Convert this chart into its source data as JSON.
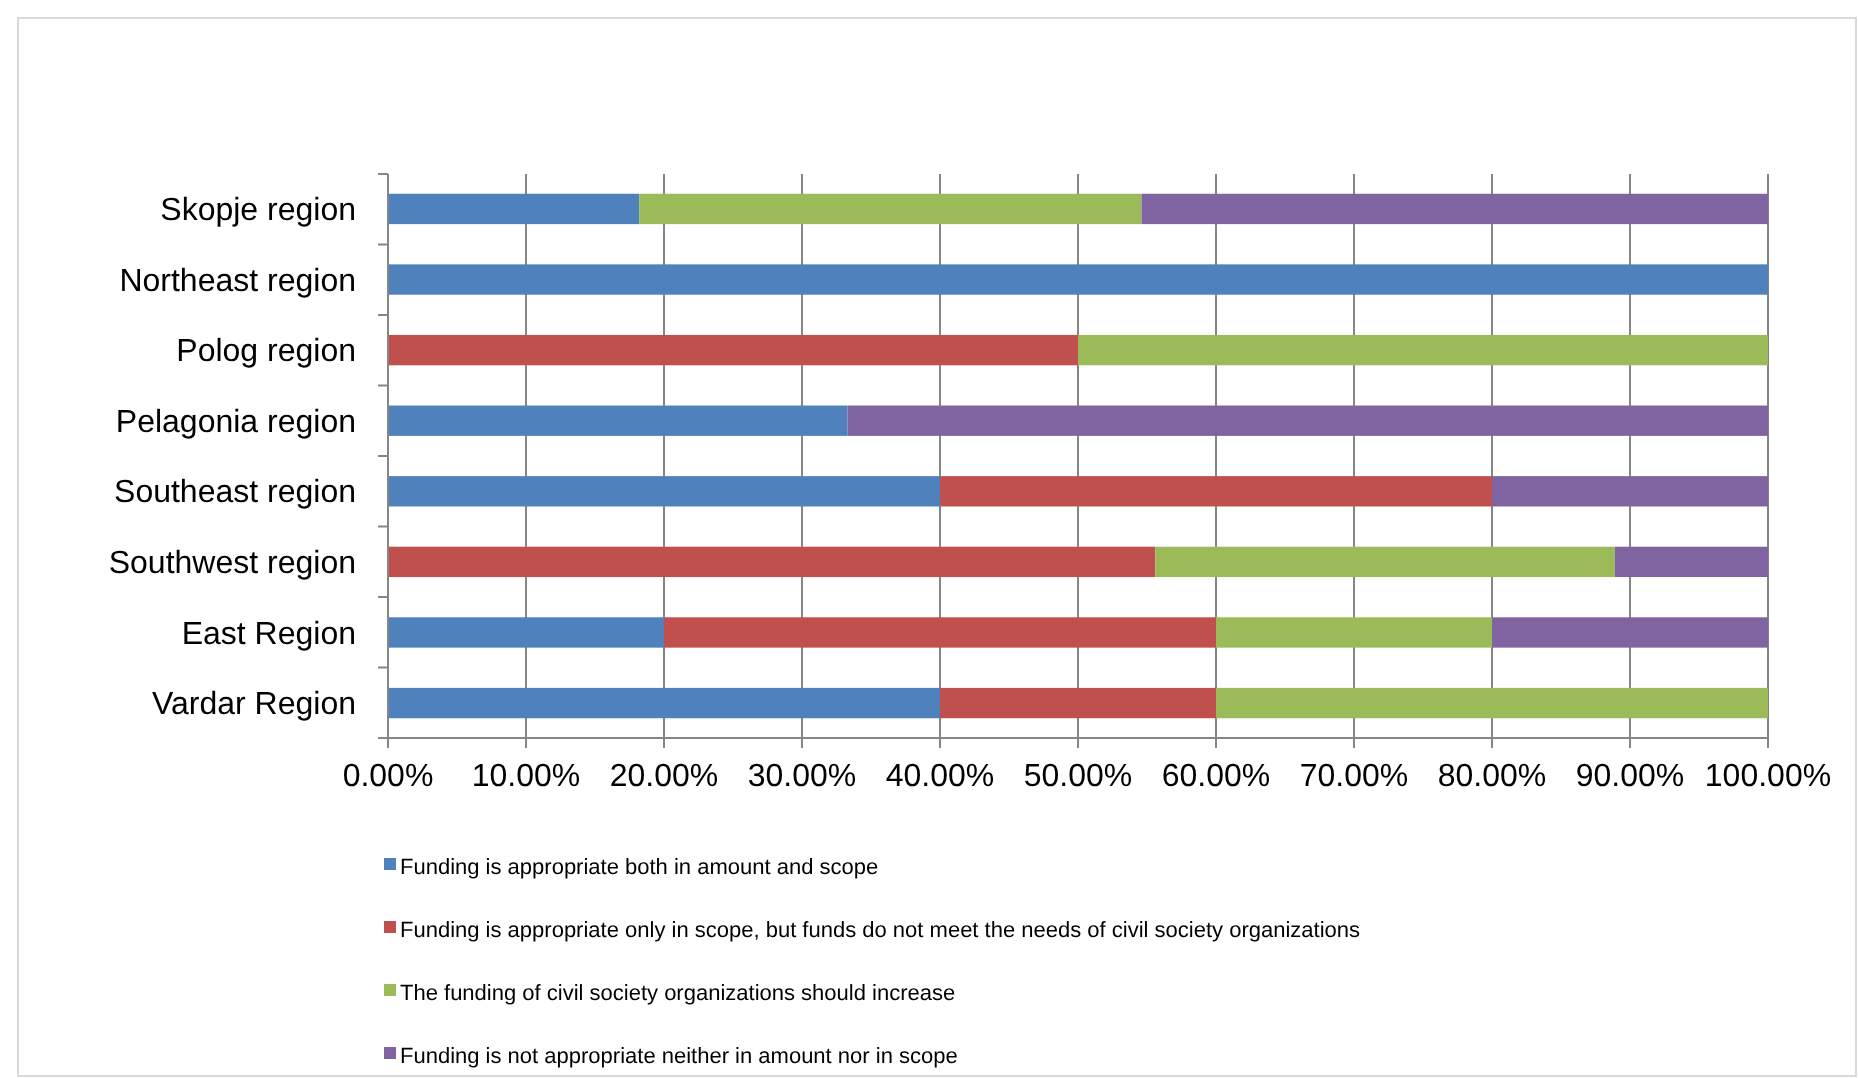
{
  "chart_data": {
    "type": "bar",
    "orientation": "horizontal",
    "stacked": true,
    "categories": [
      "Skopje region",
      "Northeast region",
      "Polog region",
      "Pelagonia region",
      "Southeast region",
      "Southwest region",
      "East Region",
      "Vardar Region"
    ],
    "series": [
      {
        "name": "Funding is appropriate both in amount and scope",
        "color": "#4f81bd",
        "values": [
          18.2,
          100,
          0,
          33.3,
          40,
          0,
          20,
          40
        ]
      },
      {
        "name": "Funding is appropriate only in scope, but funds do not meet the needs of civil society organizations",
        "color": "#c0504d",
        "values": [
          0,
          0,
          50,
          0,
          40,
          55.6,
          40,
          20
        ]
      },
      {
        "name": "The funding of civil society organizations should increase",
        "color": "#9bbb59",
        "values": [
          36.4,
          0,
          50,
          0,
          0,
          33.3,
          20,
          40
        ]
      },
      {
        "name": "Funding is not appropriate neither in amount nor in scope",
        "color": "#8064a2",
        "values": [
          45.4,
          0,
          0,
          66.7,
          20,
          11.1,
          20,
          0
        ]
      }
    ],
    "xlim": [
      0,
      100
    ],
    "xticks": [
      {
        "value": 0,
        "label": "0.00%"
      },
      {
        "value": 10,
        "label": "10.00%"
      },
      {
        "value": 20,
        "label": "20.00%"
      },
      {
        "value": 30,
        "label": "30.00%"
      },
      {
        "value": 40,
        "label": "40.00%"
      },
      {
        "value": 50,
        "label": "50.00%"
      },
      {
        "value": 60,
        "label": "60.00%"
      },
      {
        "value": 70,
        "label": "70.00%"
      },
      {
        "value": 80,
        "label": "80.00%"
      },
      {
        "value": 90,
        "label": "90.00%"
      },
      {
        "value": 100,
        "label": "100.00%"
      }
    ],
    "grid": "x",
    "legend": "bottom"
  }
}
